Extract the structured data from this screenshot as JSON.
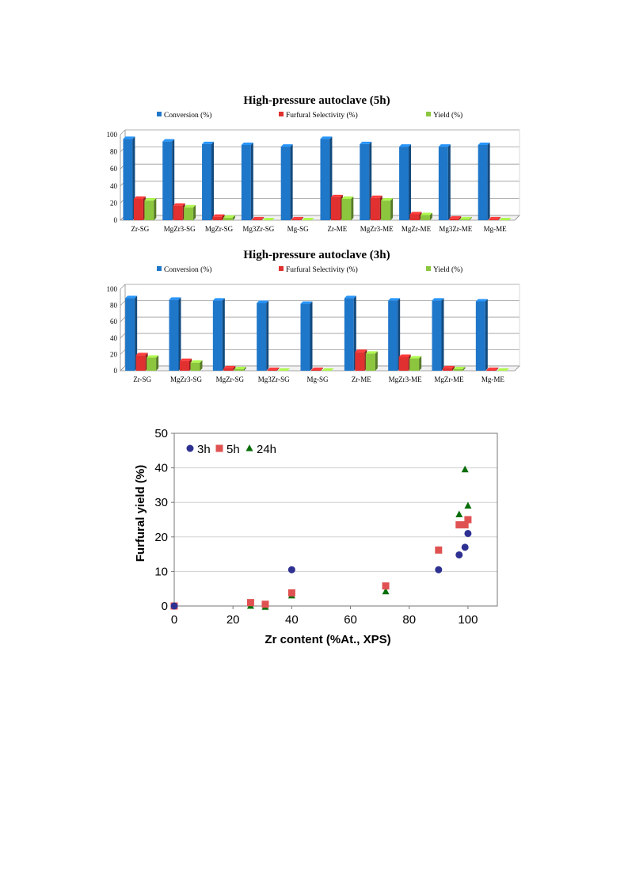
{
  "chart_data": [
    {
      "type": "bar",
      "title": "High-pressure autoclave (5h)",
      "categories": [
        "Zr-SG",
        "MgZr3-SG",
        "MgZr-SG",
        "Mg3Zr-SG",
        "Mg-SG",
        "Zr-ME",
        "MgZr3-ME",
        "MgZr-ME",
        "Mg3Zr-ME",
        "Mg-ME"
      ],
      "series": [
        {
          "name": "Conversion (%)",
          "color": "#1f77c9",
          "values": [
            95,
            92,
            89,
            88,
            86,
            95,
            89,
            86,
            86,
            88
          ]
        },
        {
          "name": "Furfural Selectivity (%)",
          "color": "#e0302f",
          "values": [
            25,
            17,
            4,
            1,
            1,
            27,
            26,
            7,
            2,
            1
          ]
        },
        {
          "name": "Yield (%)",
          "color": "#8cc63f",
          "values": [
            23,
            15,
            3,
            0,
            0,
            25,
            23,
            6,
            1,
            0
          ]
        }
      ],
      "ylim": [
        0,
        100
      ],
      "yticks": [
        "0",
        "20",
        "40",
        "60",
        "80",
        "100"
      ],
      "legend": "top",
      "grid": true
    },
    {
      "type": "bar",
      "title": "High-pressure autoclave (3h)",
      "categories": [
        "Zr-SG",
        "MgZr3-SG",
        "MgZr-SG",
        "Mg3Zr-SG",
        "Mg-SG",
        "Zr-ME",
        "MgZr3-ME",
        "MgZr-ME",
        "Mg-ME"
      ],
      "series": [
        {
          "name": "Conversion (%)",
          "color": "#1f77c9",
          "values": [
            89,
            87,
            86,
            83,
            82,
            89,
            86,
            86,
            85
          ]
        },
        {
          "name": "Furfural Selectivity (%)",
          "color": "#e0302f",
          "values": [
            19,
            12,
            3,
            1,
            1,
            23,
            17,
            3,
            1
          ]
        },
        {
          "name": "Yield (%)",
          "color": "#8cc63f",
          "values": [
            16,
            10,
            2,
            0,
            0,
            21,
            15,
            2,
            0
          ]
        }
      ],
      "ylim": [
        0,
        100
      ],
      "yticks": [
        "0",
        "20",
        "40",
        "60",
        "80",
        "100"
      ],
      "legend": "top",
      "grid": true
    },
    {
      "type": "scatter",
      "xlabel": "Zr content (%At., XPS)",
      "ylabel": "Furfural yield (%)",
      "xlim": [
        0,
        110
      ],
      "ylim": [
        0,
        50
      ],
      "xticks": [
        "0",
        "20",
        "40",
        "60",
        "80",
        "100"
      ],
      "yticks": [
        "0",
        "10",
        "20",
        "30",
        "40",
        "50"
      ],
      "legend": "top-left",
      "grid": true,
      "series": [
        {
          "name": "3h",
          "color": "#2e3192",
          "marker": "circle",
          "x": [
            0,
            40,
            90,
            97,
            99,
            100
          ],
          "y": [
            0,
            10.5,
            10.5,
            14.8,
            17,
            21
          ]
        },
        {
          "name": "5h",
          "color": "#e05252",
          "marker": "square",
          "x": [
            0,
            26,
            31,
            40,
            72,
            90,
            97,
            99,
            100
          ],
          "y": [
            0,
            1,
            0.5,
            3.8,
            5.8,
            16.2,
            23.5,
            23.5,
            25
          ]
        },
        {
          "name": "24h",
          "color": "#0a6e0a",
          "marker": "triangle",
          "x": [
            0,
            26,
            31,
            40,
            72,
            90,
            97,
            99,
            100
          ],
          "y": [
            0,
            0,
            -0.3,
            3,
            4.2,
            16.2,
            26.5,
            39.5,
            29
          ]
        }
      ]
    }
  ]
}
